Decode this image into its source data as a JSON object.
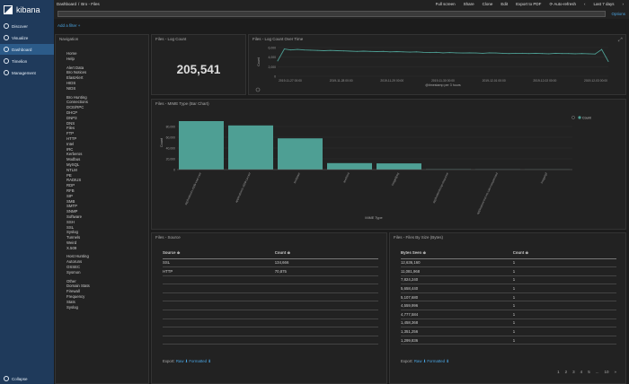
{
  "app": {
    "name": "kibana"
  },
  "sidebar": {
    "items": [
      {
        "label": "Discover",
        "icon": "compass-icon"
      },
      {
        "label": "Visualize",
        "icon": "bar-chart-icon"
      },
      {
        "label": "Dashboard",
        "icon": "dashboard-icon",
        "active": true
      },
      {
        "label": "Timelion",
        "icon": "timelion-icon"
      },
      {
        "label": "Management",
        "icon": "gear-icon"
      }
    ],
    "collapse": "Collapse"
  },
  "topbar": {
    "breadcrumb": [
      "Dashboard",
      "/",
      "Bro - Files"
    ],
    "actions": [
      "Full screen",
      "Share",
      "Clone",
      "Edit",
      "Export to PDF",
      "⟳ Auto-refresh"
    ],
    "time": "Last 7 days"
  },
  "search": {
    "options": "Options"
  },
  "add_filter": "Add a filter +",
  "panels": {
    "nav": {
      "title": "Navigation",
      "groups": [
        [
          "Home",
          "Help"
        ],
        [
          "Alert Data",
          "Bro Notices",
          "ElastAlert",
          "HIDS",
          "NIDS"
        ],
        [
          "Bro Hunting",
          "Connections",
          "DCE/RPC",
          "DHCP",
          "DNP3",
          "DNS",
          "Files",
          "FTP",
          "HTTP",
          "Intel",
          "IRC",
          "Kerberos",
          "Modbus",
          "MySQL",
          "NTLM",
          "PE",
          "RADIUS",
          "RDP",
          "RFB",
          "SIP",
          "SMB",
          "SMTP",
          "SNMP",
          "Software",
          "SSH",
          "SSL",
          "Syslog",
          "Tunnels",
          "Weird",
          "X.509"
        ],
        [
          "Host Hunting",
          "Autoruns",
          "OSSEC",
          "Sysmon"
        ],
        [
          "Other",
          "Domain Stats",
          "Firewall",
          "Frequency",
          "Stats",
          "Syslog"
        ]
      ]
    },
    "count": {
      "title": "Files - Log Count",
      "value": "205,541"
    },
    "line": {
      "title": "Files - Log Count Over Time"
    },
    "bar": {
      "title": "Files - MIME Type (Bar Chart)"
    },
    "source": {
      "title": "Files - Source",
      "headers": [
        "Source ≑",
        "Count ≑"
      ],
      "rows": [
        [
          "SSL",
          "134,666"
        ],
        [
          "HTTP",
          "70,875"
        ]
      ],
      "export": "Export:",
      "raw": "Raw ⬇",
      "formatted": "Formatted ⬇"
    },
    "size": {
      "title": "Files - Files By Size (Bytes)",
      "headers": [
        "Bytes Seen ≑",
        "Count ≑"
      ],
      "rows": [
        [
          "12,636,160",
          "1"
        ],
        [
          "11,081,968",
          "1"
        ],
        [
          "7,824,240",
          "1"
        ],
        [
          "5,658,440",
          "1"
        ],
        [
          "5,107,680",
          "1"
        ],
        [
          "4,559,996",
          "1"
        ],
        [
          "4,777,584",
          "1"
        ],
        [
          "1,458,368",
          "1"
        ],
        [
          "1,351,256",
          "1"
        ],
        [
          "1,299,836",
          "1"
        ]
      ],
      "export": "Export:",
      "raw": "Raw ⬇",
      "formatted": "Formatted ⬇",
      "pages": [
        "1",
        "2",
        "3",
        "4",
        "5",
        "...",
        "10",
        "»"
      ]
    }
  },
  "chart_data": [
    {
      "type": "line",
      "title": "Files - Log Count Over Time",
      "xlabel": "@timestamp per 3 hours",
      "ylabel": "Count",
      "x_ticks": [
        "2019-11-27 00:00",
        "2019-11-28 00:00",
        "2019-11-29 00:00",
        "2019-11-30 00:00",
        "2019-12-01 00:00",
        "2019-12-02 00:00",
        "2019-12-03 00:00"
      ],
      "y_ticks": [
        "0",
        "2,000",
        "4,000",
        "6,000"
      ],
      "ylim": [
        0,
        6000
      ],
      "series": [
        {
          "values": [
            3200,
            5700,
            5500,
            5600,
            5500,
            5450,
            5400,
            5350,
            5400,
            5350,
            5300,
            5250,
            5200,
            5250,
            5200,
            5150,
            5200,
            5100,
            5150,
            5100,
            5050,
            5100,
            5000,
            4950,
            5000,
            4900,
            4950,
            4900,
            4850,
            4900,
            4850,
            4800,
            4900,
            4850,
            4800,
            4750,
            4800,
            4800,
            4750,
            4800,
            4750,
            4700,
            4800,
            4750,
            4750,
            4700,
            4750,
            4700,
            4650,
            5600,
            3100
          ]
        }
      ],
      "color": "#4e9f94"
    },
    {
      "type": "bar",
      "title": "Files - MIME Type (Bar Chart)",
      "xlabel": "MIME Type",
      "ylabel": "Count",
      "categories": [
        "application/x-x509-user-cert",
        "application/x-x509-ca-cert",
        "text/plain",
        "text/html",
        "image/jpeg",
        "application/ocsp-response",
        "application/vnd.ms-cab-compressed",
        "image/gif"
      ],
      "values": [
        90000,
        82000,
        58000,
        12000,
        11500,
        500,
        300,
        200
      ],
      "y_ticks": [
        "0",
        "20,000",
        "40,000",
        "60,000",
        "80,000"
      ],
      "ylim": [
        0,
        100000
      ],
      "legend": [
        "Count"
      ],
      "color": "#4e9f94"
    }
  ]
}
